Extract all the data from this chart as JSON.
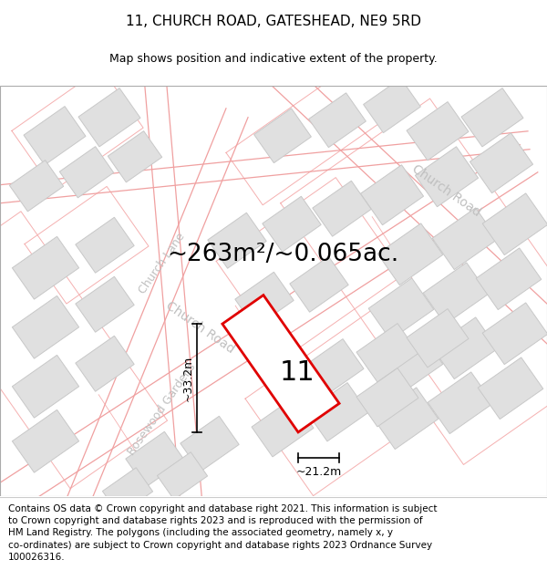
{
  "title": "11, CHURCH ROAD, GATESHEAD, NE9 5RD",
  "subtitle": "Map shows position and indicative extent of the property.",
  "area_text": "~263m²/~0.065ac.",
  "width_text": "~21.2m",
  "height_text": "~33.2m",
  "number_text": "11",
  "footer_text": "Contains OS data © Crown copyright and database right 2021. This information is subject to Crown copyright and database rights 2023 and is reproduced with the permission of HM Land Registry. The polygons (including the associated geometry, namely x, y co-ordinates) are subject to Crown copyright and database rights 2023 Ordnance Survey 100026316.",
  "bg_color": "#ffffff",
  "road_line_color": "#f0a0a0",
  "road_line_color2": "#e08080",
  "building_fill": "#e0e0e0",
  "building_edge": "#c8c8c8",
  "parcel_line": "#f5b0b0",
  "property_fill": "#ffffff",
  "property_edge": "#e00000",
  "street_label_color": "#c0c0c0",
  "annotation_color": "#000000",
  "title_fontsize": 11,
  "subtitle_fontsize": 9,
  "area_fontsize": 19,
  "number_fontsize": 22,
  "dim_fontsize": 9,
  "footer_fontsize": 7.5,
  "street_fontsize": 10
}
